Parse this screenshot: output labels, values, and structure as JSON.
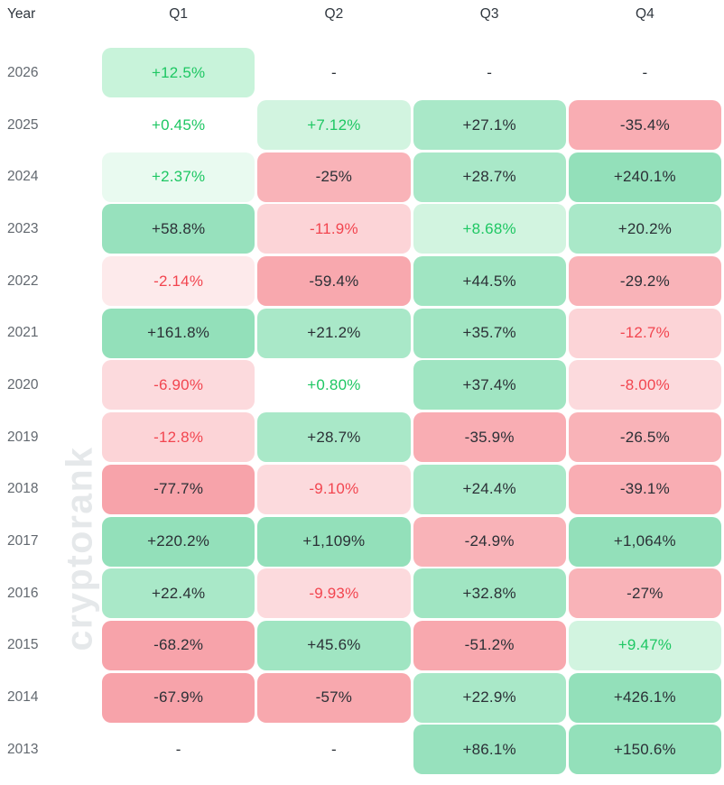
{
  "header": {
    "year_label": "Year",
    "quarters": [
      "Q1",
      "Q2",
      "Q3",
      "Q4"
    ]
  },
  "watermark": {
    "text": "cryptorank"
  },
  "colors": {
    "text_dark": "#2b3036",
    "text_green": "#1ec763",
    "text_red": "#f2454f",
    "year_label": "#62686f",
    "header_text": "#2f363e",
    "watermark": "#e5e8ea"
  },
  "rows": [
    {
      "year": "2026",
      "cells": [
        {
          "v": "+12.5%",
          "bg": "#c8f3da",
          "fg": "green"
        },
        {
          "v": "-",
          "bg": "",
          "fg": "dark"
        },
        {
          "v": "-",
          "bg": "",
          "fg": "dark"
        },
        {
          "v": "-",
          "bg": "",
          "fg": "dark"
        }
      ]
    },
    {
      "year": "2025",
      "cells": [
        {
          "v": "+0.45%",
          "bg": "",
          "fg": "green"
        },
        {
          "v": "+7.12%",
          "bg": "#d2f4e0",
          "fg": "green"
        },
        {
          "v": "+27.1%",
          "bg": "#a9e8c8",
          "fg": "dark"
        },
        {
          "v": "-35.4%",
          "bg": "#f9adb3",
          "fg": "dark"
        }
      ]
    },
    {
      "year": "2024",
      "cells": [
        {
          "v": "+2.37%",
          "bg": "#e9faf0",
          "fg": "green"
        },
        {
          "v": "-25%",
          "bg": "#f9b3b8",
          "fg": "dark"
        },
        {
          "v": "+28.7%",
          "bg": "#a9e8c8",
          "fg": "dark"
        },
        {
          "v": "+240.1%",
          "bg": "#93e0ba",
          "fg": "dark"
        }
      ]
    },
    {
      "year": "2023",
      "cells": [
        {
          "v": "+58.8%",
          "bg": "#97e1bd",
          "fg": "dark"
        },
        {
          "v": "-11.9%",
          "bg": "#fcd4d7",
          "fg": "red"
        },
        {
          "v": "+8.68%",
          "bg": "#d2f4e0",
          "fg": "green"
        },
        {
          "v": "+20.2%",
          "bg": "#a9e8c8",
          "fg": "dark"
        }
      ]
    },
    {
      "year": "2022",
      "cells": [
        {
          "v": "-2.14%",
          "bg": "#fdeaeb",
          "fg": "red"
        },
        {
          "v": "-59.4%",
          "bg": "#f8a8ae",
          "fg": "dark"
        },
        {
          "v": "+44.5%",
          "bg": "#a0e5c2",
          "fg": "dark"
        },
        {
          "v": "-29.2%",
          "bg": "#f9b3b8",
          "fg": "dark"
        }
      ]
    },
    {
      "year": "2021",
      "cells": [
        {
          "v": "+161.8%",
          "bg": "#93e0ba",
          "fg": "dark"
        },
        {
          "v": "+21.2%",
          "bg": "#a9e8c8",
          "fg": "dark"
        },
        {
          "v": "+35.7%",
          "bg": "#a0e5c2",
          "fg": "dark"
        },
        {
          "v": "-12.7%",
          "bg": "#fcd4d7",
          "fg": "red"
        }
      ]
    },
    {
      "year": "2020",
      "cells": [
        {
          "v": "-6.90%",
          "bg": "#fcdadd",
          "fg": "red"
        },
        {
          "v": "+0.80%",
          "bg": "",
          "fg": "green"
        },
        {
          "v": "+37.4%",
          "bg": "#a0e5c2",
          "fg": "dark"
        },
        {
          "v": "-8.00%",
          "bg": "#fcdadd",
          "fg": "red"
        }
      ]
    },
    {
      "year": "2019",
      "cells": [
        {
          "v": "-12.8%",
          "bg": "#fcd4d7",
          "fg": "red"
        },
        {
          "v": "+28.7%",
          "bg": "#a9e8c8",
          "fg": "dark"
        },
        {
          "v": "-35.9%",
          "bg": "#f9adb3",
          "fg": "dark"
        },
        {
          "v": "-26.5%",
          "bg": "#f9b3b8",
          "fg": "dark"
        }
      ]
    },
    {
      "year": "2018",
      "cells": [
        {
          "v": "-77.7%",
          "bg": "#f7a3aa",
          "fg": "dark"
        },
        {
          "v": "-9.10%",
          "bg": "#fcdadd",
          "fg": "red"
        },
        {
          "v": "+24.4%",
          "bg": "#a9e8c8",
          "fg": "dark"
        },
        {
          "v": "-39.1%",
          "bg": "#f9adb3",
          "fg": "dark"
        }
      ]
    },
    {
      "year": "2017",
      "cells": [
        {
          "v": "+220.2%",
          "bg": "#93e0ba",
          "fg": "dark"
        },
        {
          "v": "+1,109%",
          "bg": "#93e0ba",
          "fg": "dark"
        },
        {
          "v": "-24.9%",
          "bg": "#f9b3b8",
          "fg": "dark"
        },
        {
          "v": "+1,064%",
          "bg": "#93e0ba",
          "fg": "dark"
        }
      ]
    },
    {
      "year": "2016",
      "cells": [
        {
          "v": "+22.4%",
          "bg": "#a9e8c8",
          "fg": "dark"
        },
        {
          "v": "-9.93%",
          "bg": "#fcdadd",
          "fg": "red"
        },
        {
          "v": "+32.8%",
          "bg": "#a0e5c2",
          "fg": "dark"
        },
        {
          "v": "-27%",
          "bg": "#f9b3b8",
          "fg": "dark"
        }
      ]
    },
    {
      "year": "2015",
      "cells": [
        {
          "v": "-68.2%",
          "bg": "#f7a3aa",
          "fg": "dark"
        },
        {
          "v": "+45.6%",
          "bg": "#a0e5c2",
          "fg": "dark"
        },
        {
          "v": "-51.2%",
          "bg": "#f8a8ae",
          "fg": "dark"
        },
        {
          "v": "+9.47%",
          "bg": "#d2f4e0",
          "fg": "green"
        }
      ]
    },
    {
      "year": "2014",
      "cells": [
        {
          "v": "-67.9%",
          "bg": "#f7a3aa",
          "fg": "dark"
        },
        {
          "v": "-57%",
          "bg": "#f8a8ae",
          "fg": "dark"
        },
        {
          "v": "+22.9%",
          "bg": "#a9e8c8",
          "fg": "dark"
        },
        {
          "v": "+426.1%",
          "bg": "#93e0ba",
          "fg": "dark"
        }
      ]
    },
    {
      "year": "2013",
      "cells": [
        {
          "v": "-",
          "bg": "",
          "fg": "dark"
        },
        {
          "v": "-",
          "bg": "",
          "fg": "dark"
        },
        {
          "v": "+86.1%",
          "bg": "#97e1bd",
          "fg": "dark"
        },
        {
          "v": "+150.6%",
          "bg": "#93e0ba",
          "fg": "dark"
        }
      ]
    }
  ],
  "chart_data": {
    "type": "heatmap",
    "title": "",
    "columns": [
      "Q1",
      "Q2",
      "Q3",
      "Q4"
    ],
    "years": [
      2026,
      2025,
      2024,
      2023,
      2022,
      2021,
      2020,
      2019,
      2018,
      2017,
      2016,
      2015,
      2014,
      2013
    ],
    "values_percent": [
      [
        12.5,
        null,
        null,
        null
      ],
      [
        0.45,
        7.12,
        27.1,
        -35.4
      ],
      [
        2.37,
        -25,
        28.7,
        240.1
      ],
      [
        58.8,
        -11.9,
        8.68,
        20.2
      ],
      [
        -2.14,
        -59.4,
        44.5,
        -29.2
      ],
      [
        161.8,
        21.2,
        35.7,
        -12.7
      ],
      [
        -6.9,
        0.8,
        37.4,
        -8.0
      ],
      [
        -12.8,
        28.7,
        -35.9,
        -26.5
      ],
      [
        -77.7,
        -9.1,
        24.4,
        -39.1
      ],
      [
        220.2,
        1109,
        -24.9,
        1064
      ],
      [
        22.4,
        -9.93,
        32.8,
        -27
      ],
      [
        -68.2,
        45.6,
        -51.2,
        9.47
      ],
      [
        -67.9,
        -57,
        22.9,
        426.1
      ],
      [
        null,
        null,
        86.1,
        150.6
      ]
    ],
    "color_encoding": "green = positive quarter, red = negative quarter; background intensity scales with magnitude",
    "legend_position": "none",
    "grid": false
  }
}
